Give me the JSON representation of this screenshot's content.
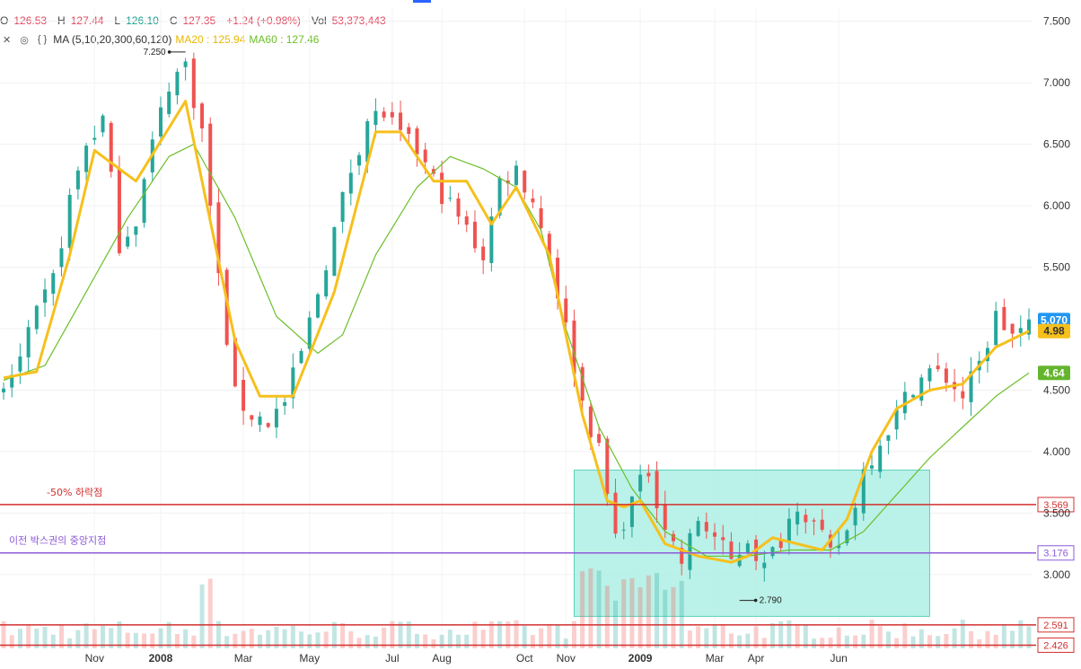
{
  "legend": {
    "open_label": "O",
    "open": "126.53",
    "high_label": "H",
    "high": "127.44",
    "low_label": "L",
    "low": "126.10",
    "close_label": "C",
    "close": "127.35",
    "change": "+1.24 (+0.98%)",
    "vol_label": "Vol",
    "vol": "53,373,443",
    "ma_name": "MA (5,10,20,300,60,120)",
    "ma20": "MA20 : 125.94",
    "ma60": "MA60 : 127.46"
  },
  "chart_data": {
    "type": "candlestick",
    "ylim": [
      2.4,
      7.6
    ],
    "y_ticks": [
      "7.500",
      "7.000",
      "6.500",
      "6.000",
      "5.500",
      "5.000",
      "4.500",
      "4.000",
      "3.500",
      "3.000"
    ],
    "x_labels": [
      "Nov",
      "2008",
      "Mar",
      "May",
      "Jul",
      "Aug",
      "Oct",
      "Nov",
      "2009",
      "Mar",
      "Apr",
      "Jun"
    ],
    "price_path": [
      [
        0,
        4.5
      ],
      [
        2,
        4.75
      ],
      [
        4,
        5.1
      ],
      [
        6,
        5.4
      ],
      [
        8,
        6.05
      ],
      [
        10,
        6.5
      ],
      [
        12,
        6.7
      ],
      [
        14,
        5.7
      ],
      [
        16,
        5.9
      ],
      [
        18,
        6.5
      ],
      [
        20,
        7.0
      ],
      [
        22,
        7.15
      ],
      [
        24,
        6.6
      ],
      [
        26,
        5.4
      ],
      [
        28,
        4.45
      ],
      [
        30,
        4.3
      ],
      [
        32,
        4.25
      ],
      [
        34,
        4.4
      ],
      [
        36,
        4.8
      ],
      [
        38,
        5.3
      ],
      [
        40,
        5.8
      ],
      [
        42,
        6.3
      ],
      [
        44,
        6.7
      ],
      [
        46,
        6.75
      ],
      [
        48,
        6.55
      ],
      [
        50,
        6.45
      ],
      [
        52,
        6.2
      ],
      [
        54,
        6.0
      ],
      [
        56,
        5.8
      ],
      [
        58,
        5.6
      ],
      [
        60,
        6.2
      ],
      [
        62,
        6.3
      ],
      [
        64,
        6.05
      ],
      [
        66,
        5.6
      ],
      [
        68,
        5.0
      ],
      [
        70,
        4.4
      ],
      [
        72,
        4.0
      ],
      [
        74,
        3.3
      ],
      [
        76,
        3.6
      ],
      [
        78,
        3.85
      ],
      [
        80,
        3.4
      ],
      [
        82,
        3.1
      ],
      [
        84,
        3.45
      ],
      [
        86,
        3.3
      ],
      [
        88,
        3.1
      ],
      [
        90,
        3.3
      ],
      [
        92,
        3.05
      ],
      [
        94,
        3.3
      ],
      [
        96,
        3.6
      ],
      [
        98,
        3.4
      ],
      [
        100,
        3.15
      ],
      [
        102,
        3.35
      ],
      [
        104,
        3.85
      ],
      [
        106,
        4.1
      ],
      [
        108,
        4.3
      ],
      [
        110,
        4.55
      ],
      [
        112,
        4.65
      ],
      [
        114,
        4.6
      ],
      [
        116,
        4.45
      ],
      [
        118,
        4.7
      ],
      [
        120,
        5.1
      ],
      [
        122,
        4.95
      ],
      [
        124,
        5.0
      ]
    ],
    "ma20": [
      [
        0,
        4.6
      ],
      [
        4,
        4.65
      ],
      [
        8,
        5.6
      ],
      [
        11,
        6.45
      ],
      [
        16,
        6.2
      ],
      [
        22,
        6.85
      ],
      [
        28,
        4.9
      ],
      [
        31,
        4.45
      ],
      [
        35,
        4.45
      ],
      [
        40,
        5.3
      ],
      [
        45,
        6.6
      ],
      [
        48,
        6.6
      ],
      [
        52,
        6.2
      ],
      [
        56,
        6.2
      ],
      [
        59,
        5.85
      ],
      [
        62,
        6.15
      ],
      [
        66,
        5.6
      ],
      [
        70,
        4.3
      ],
      [
        73,
        3.6
      ],
      [
        75,
        3.55
      ],
      [
        77,
        3.6
      ],
      [
        80,
        3.25
      ],
      [
        84,
        3.15
      ],
      [
        88,
        3.1
      ],
      [
        90,
        3.15
      ],
      [
        93,
        3.3
      ],
      [
        96,
        3.25
      ],
      [
        99,
        3.2
      ],
      [
        102,
        3.45
      ],
      [
        105,
        4.0
      ],
      [
        108,
        4.35
      ],
      [
        112,
        4.5
      ],
      [
        116,
        4.55
      ],
      [
        120,
        4.85
      ],
      [
        124,
        4.98
      ]
    ],
    "ma60": [
      [
        0,
        4.58
      ],
      [
        5,
        4.7
      ],
      [
        10,
        5.3
      ],
      [
        15,
        5.9
      ],
      [
        20,
        6.4
      ],
      [
        23,
        6.5
      ],
      [
        28,
        5.9
      ],
      [
        33,
        5.1
      ],
      [
        38,
        4.8
      ],
      [
        41,
        4.95
      ],
      [
        45,
        5.6
      ],
      [
        50,
        6.15
      ],
      [
        54,
        6.4
      ],
      [
        58,
        6.3
      ],
      [
        62,
        6.15
      ],
      [
        65,
        5.8
      ],
      [
        68,
        5.0
      ],
      [
        72,
        4.2
      ],
      [
        76,
        3.7
      ],
      [
        80,
        3.35
      ],
      [
        85,
        3.15
      ],
      [
        90,
        3.15
      ],
      [
        95,
        3.2
      ],
      [
        100,
        3.2
      ],
      [
        104,
        3.35
      ],
      [
        108,
        3.65
      ],
      [
        112,
        3.95
      ],
      [
        116,
        4.2
      ],
      [
        120,
        4.45
      ],
      [
        124,
        4.64
      ]
    ],
    "hlines": [
      {
        "value": 3.569,
        "label": "3.569",
        "color": "#d32f2f",
        "text": "-50% 하락점"
      },
      {
        "value": 3.176,
        "label": "3.176",
        "color": "#8e5bd9",
        "text": "이전 박스권의 중앙지점"
      },
      {
        "value": 2.591,
        "label": "2.591",
        "color": "#d32f2f",
        "text": ""
      },
      {
        "value": 2.426,
        "label": "2.426",
        "color": "#d32f2f",
        "text": ""
      }
    ],
    "price_badges": [
      {
        "value": 5.07,
        "label": "5.070",
        "color": "#2196f3"
      },
      {
        "value": 4.98,
        "label": "4.98",
        "color": "#f6c01c"
      },
      {
        "value": 4.64,
        "label": "4.64",
        "color": "#64b52d"
      }
    ],
    "annotations": [
      {
        "label": "7.250",
        "value": 7.25,
        "index": 22
      },
      {
        "label": "2.790",
        "value": 2.79,
        "index": 89
      }
    ],
    "box": {
      "from_index": 69,
      "to_index": 112,
      "top": 3.85,
      "bottom": 2.66
    },
    "colors": {
      "up": "#26a69a",
      "down": "#ef5350",
      "ma20": "#f6c01c",
      "ma60": "#6cbf2a",
      "box": "#b2f0e6"
    }
  }
}
